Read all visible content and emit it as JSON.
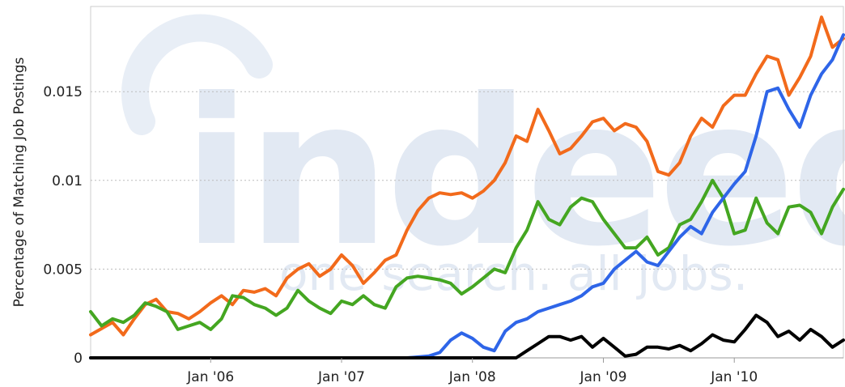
{
  "chart_data": {
    "type": "line",
    "title": "",
    "xlabel": "",
    "ylabel": "Percentage of Matching Job Postings",
    "x_range": [
      "2005-02",
      "2010-11"
    ],
    "ylim": [
      0,
      0.0198
    ],
    "y_ticks": [
      {
        "value": 0,
        "label": "0"
      },
      {
        "value": 0.005,
        "label": "0.005"
      },
      {
        "value": 0.01,
        "label": "0.01"
      },
      {
        "value": 0.015,
        "label": "0.015"
      }
    ],
    "x_ticks": [
      {
        "date": "2006-01",
        "label": "Jan '06"
      },
      {
        "date": "2007-01",
        "label": "Jan '07"
      },
      {
        "date": "2008-01",
        "label": "Jan '08"
      },
      {
        "date": "2009-01",
        "label": "Jan '09"
      },
      {
        "date": "2010-01",
        "label": "Jan '10"
      }
    ],
    "grid": "horizontal dotted",
    "legend": "none",
    "watermark": {
      "logo": "indeed",
      "tagline": "one search. all jobs."
    },
    "series": [
      {
        "color": "#f26a1b",
        "points": [
          [
            "2005-02",
            0.0013
          ],
          [
            "2005-04",
            0.002
          ],
          [
            "2005-05",
            0.0013
          ],
          [
            "2005-06",
            0.0022
          ],
          [
            "2005-07",
            0.003
          ],
          [
            "2005-08",
            0.0033
          ],
          [
            "2005-09",
            0.0026
          ],
          [
            "2005-10",
            0.0025
          ],
          [
            "2005-11",
            0.0022
          ],
          [
            "2005-12",
            0.0026
          ],
          [
            "2006-01",
            0.0031
          ],
          [
            "2006-02",
            0.0035
          ],
          [
            "2006-03",
            0.003
          ],
          [
            "2006-04",
            0.0038
          ],
          [
            "2006-05",
            0.0037
          ],
          [
            "2006-06",
            0.0039
          ],
          [
            "2006-07",
            0.0035
          ],
          [
            "2006-08",
            0.0045
          ],
          [
            "2006-09",
            0.005
          ],
          [
            "2006-10",
            0.0053
          ],
          [
            "2006-11",
            0.0046
          ],
          [
            "2006-12",
            0.005
          ],
          [
            "2007-01",
            0.0058
          ],
          [
            "2007-02",
            0.0052
          ],
          [
            "2007-03",
            0.0042
          ],
          [
            "2007-04",
            0.0048
          ],
          [
            "2007-05",
            0.0055
          ],
          [
            "2007-06",
            0.0058
          ],
          [
            "2007-07",
            0.0072
          ],
          [
            "2007-08",
            0.0083
          ],
          [
            "2007-09",
            0.009
          ],
          [
            "2007-10",
            0.0093
          ],
          [
            "2007-11",
            0.0092
          ],
          [
            "2007-12",
            0.0093
          ],
          [
            "2008-01",
            0.009
          ],
          [
            "2008-02",
            0.0094
          ],
          [
            "2008-03",
            0.01
          ],
          [
            "2008-04",
            0.011
          ],
          [
            "2008-05",
            0.0125
          ],
          [
            "2008-06",
            0.0122
          ],
          [
            "2008-07",
            0.014
          ],
          [
            "2008-08",
            0.0128
          ],
          [
            "2008-09",
            0.0115
          ],
          [
            "2008-10",
            0.0118
          ],
          [
            "2008-11",
            0.0125
          ],
          [
            "2008-12",
            0.0133
          ],
          [
            "2009-01",
            0.0135
          ],
          [
            "2009-02",
            0.0128
          ],
          [
            "2009-03",
            0.0132
          ],
          [
            "2009-04",
            0.013
          ],
          [
            "2009-05",
            0.0122
          ],
          [
            "2009-06",
            0.0105
          ],
          [
            "2009-07",
            0.0103
          ],
          [
            "2009-08",
            0.011
          ],
          [
            "2009-09",
            0.0125
          ],
          [
            "2009-10",
            0.0135
          ],
          [
            "2009-11",
            0.013
          ],
          [
            "2009-12",
            0.0142
          ],
          [
            "2010-01",
            0.0148
          ],
          [
            "2010-02",
            0.0148
          ],
          [
            "2010-03",
            0.016
          ],
          [
            "2010-04",
            0.017
          ],
          [
            "2010-05",
            0.0168
          ],
          [
            "2010-06",
            0.0148
          ],
          [
            "2010-07",
            0.0158
          ],
          [
            "2010-08",
            0.017
          ],
          [
            "2010-09",
            0.0192
          ],
          [
            "2010-10",
            0.0175
          ],
          [
            "2010-11",
            0.018
          ]
        ]
      },
      {
        "color": "#44a621",
        "points": [
          [
            "2005-02",
            0.0026
          ],
          [
            "2005-03",
            0.0018
          ],
          [
            "2005-04",
            0.0022
          ],
          [
            "2005-05",
            0.002
          ],
          [
            "2005-06",
            0.0024
          ],
          [
            "2005-07",
            0.0031
          ],
          [
            "2005-08",
            0.0029
          ],
          [
            "2005-09",
            0.0026
          ],
          [
            "2005-10",
            0.0016
          ],
          [
            "2005-11",
            0.0018
          ],
          [
            "2005-12",
            0.002
          ],
          [
            "2006-01",
            0.0016
          ],
          [
            "2006-02",
            0.0022
          ],
          [
            "2006-03",
            0.0035
          ],
          [
            "2006-04",
            0.0034
          ],
          [
            "2006-05",
            0.003
          ],
          [
            "2006-06",
            0.0028
          ],
          [
            "2006-07",
            0.0024
          ],
          [
            "2006-08",
            0.0028
          ],
          [
            "2006-09",
            0.0038
          ],
          [
            "2006-10",
            0.0032
          ],
          [
            "2006-11",
            0.0028
          ],
          [
            "2006-12",
            0.0025
          ],
          [
            "2007-01",
            0.0032
          ],
          [
            "2007-02",
            0.003
          ],
          [
            "2007-03",
            0.0035
          ],
          [
            "2007-04",
            0.003
          ],
          [
            "2007-05",
            0.0028
          ],
          [
            "2007-06",
            0.004
          ],
          [
            "2007-07",
            0.0045
          ],
          [
            "2007-08",
            0.0046
          ],
          [
            "2007-09",
            0.0045
          ],
          [
            "2007-10",
            0.0044
          ],
          [
            "2007-11",
            0.0042
          ],
          [
            "2007-12",
            0.0036
          ],
          [
            "2008-01",
            0.004
          ],
          [
            "2008-02",
            0.0045
          ],
          [
            "2008-03",
            0.005
          ],
          [
            "2008-04",
            0.0048
          ],
          [
            "2008-05",
            0.0062
          ],
          [
            "2008-06",
            0.0072
          ],
          [
            "2008-07",
            0.0088
          ],
          [
            "2008-08",
            0.0078
          ],
          [
            "2008-09",
            0.0075
          ],
          [
            "2008-10",
            0.0085
          ],
          [
            "2008-11",
            0.009
          ],
          [
            "2008-12",
            0.0088
          ],
          [
            "2009-01",
            0.0078
          ],
          [
            "2009-02",
            0.007
          ],
          [
            "2009-03",
            0.0062
          ],
          [
            "2009-04",
            0.0062
          ],
          [
            "2009-05",
            0.0068
          ],
          [
            "2009-06",
            0.0058
          ],
          [
            "2009-07",
            0.0062
          ],
          [
            "2009-08",
            0.0075
          ],
          [
            "2009-09",
            0.0078
          ],
          [
            "2009-10",
            0.0088
          ],
          [
            "2009-11",
            0.01
          ],
          [
            "2009-12",
            0.009
          ],
          [
            "2010-01",
            0.007
          ],
          [
            "2010-02",
            0.0072
          ],
          [
            "2010-03",
            0.009
          ],
          [
            "2010-04",
            0.0076
          ],
          [
            "2010-05",
            0.007
          ],
          [
            "2010-06",
            0.0085
          ],
          [
            "2010-07",
            0.0086
          ],
          [
            "2010-08",
            0.0082
          ],
          [
            "2010-09",
            0.007
          ],
          [
            "2010-10",
            0.0085
          ],
          [
            "2010-11",
            0.0095
          ]
        ]
      },
      {
        "color": "#2e65e8",
        "points": [
          [
            "2005-02",
            0.0
          ],
          [
            "2007-07",
            0.0
          ],
          [
            "2007-09",
            0.0001
          ],
          [
            "2007-10",
            0.0003
          ],
          [
            "2007-11",
            0.001
          ],
          [
            "2007-12",
            0.0014
          ],
          [
            "2008-01",
            0.0011
          ],
          [
            "2008-02",
            0.0006
          ],
          [
            "2008-03",
            0.0004
          ],
          [
            "2008-04",
            0.0015
          ],
          [
            "2008-05",
            0.002
          ],
          [
            "2008-06",
            0.0022
          ],
          [
            "2008-07",
            0.0026
          ],
          [
            "2008-08",
            0.0028
          ],
          [
            "2008-09",
            0.003
          ],
          [
            "2008-10",
            0.0032
          ],
          [
            "2008-11",
            0.0035
          ],
          [
            "2008-12",
            0.004
          ],
          [
            "2009-01",
            0.0042
          ],
          [
            "2009-02",
            0.005
          ],
          [
            "2009-03",
            0.0055
          ],
          [
            "2009-04",
            0.006
          ],
          [
            "2009-05",
            0.0054
          ],
          [
            "2009-06",
            0.0052
          ],
          [
            "2009-07",
            0.006
          ],
          [
            "2009-08",
            0.0068
          ],
          [
            "2009-09",
            0.0074
          ],
          [
            "2009-10",
            0.007
          ],
          [
            "2009-11",
            0.0082
          ],
          [
            "2009-12",
            0.009
          ],
          [
            "2010-01",
            0.0098
          ],
          [
            "2010-02",
            0.0105
          ],
          [
            "2010-03",
            0.0125
          ],
          [
            "2010-04",
            0.015
          ],
          [
            "2010-05",
            0.0152
          ],
          [
            "2010-06",
            0.014
          ],
          [
            "2010-07",
            0.013
          ],
          [
            "2010-08",
            0.0148
          ],
          [
            "2010-09",
            0.016
          ],
          [
            "2010-10",
            0.0168
          ],
          [
            "2010-11",
            0.0182
          ]
        ]
      },
      {
        "color": "#000000",
        "points": [
          [
            "2005-02",
            0.0
          ],
          [
            "2008-05",
            0.0
          ],
          [
            "2008-06",
            0.0004
          ],
          [
            "2008-07",
            0.0008
          ],
          [
            "2008-08",
            0.0012
          ],
          [
            "2008-09",
            0.0012
          ],
          [
            "2008-10",
            0.001
          ],
          [
            "2008-11",
            0.0012
          ],
          [
            "2008-12",
            0.0006
          ],
          [
            "2009-01",
            0.0011
          ],
          [
            "2009-02",
            0.0006
          ],
          [
            "2009-03",
            0.0001
          ],
          [
            "2009-04",
            0.0002
          ],
          [
            "2009-05",
            0.0006
          ],
          [
            "2009-06",
            0.0006
          ],
          [
            "2009-07",
            0.0005
          ],
          [
            "2009-08",
            0.0007
          ],
          [
            "2009-09",
            0.0004
          ],
          [
            "2009-10",
            0.0008
          ],
          [
            "2009-11",
            0.0013
          ],
          [
            "2009-12",
            0.001
          ],
          [
            "2010-01",
            0.0009
          ],
          [
            "2010-02",
            0.0016
          ],
          [
            "2010-03",
            0.0024
          ],
          [
            "2010-04",
            0.002
          ],
          [
            "2010-05",
            0.0012
          ],
          [
            "2010-06",
            0.0015
          ],
          [
            "2010-07",
            0.001
          ],
          [
            "2010-08",
            0.0016
          ],
          [
            "2010-09",
            0.0012
          ],
          [
            "2010-10",
            0.0006
          ],
          [
            "2010-11",
            0.001
          ]
        ]
      }
    ]
  }
}
